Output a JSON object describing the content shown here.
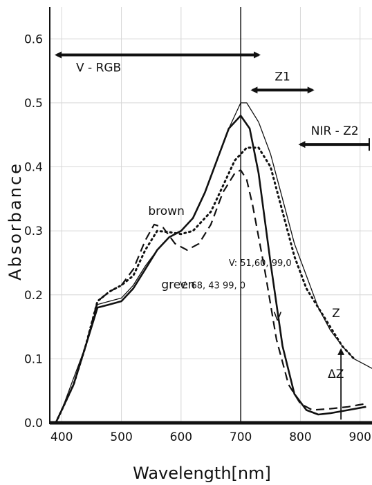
{
  "chart_data": {
    "type": "line",
    "xlabel": "Wavelength[nm]",
    "ylabel": "Absorbance",
    "xlim": [
      380,
      920
    ],
    "ylim": [
      0.0,
      0.65
    ],
    "x_ticks": [
      "400",
      "500",
      "600",
      "700",
      "800",
      "900"
    ],
    "y_ticks": [
      "0.0",
      "0.1",
      "0.2",
      "0.3",
      "0.4",
      "0.5",
      "0.6"
    ],
    "grid": true,
    "vertical_line_x": 700,
    "series": [
      {
        "name": "brown",
        "style": "dashed",
        "points": [
          [
            390,
            0.0
          ],
          [
            400,
            0.02
          ],
          [
            420,
            0.06
          ],
          [
            440,
            0.12
          ],
          [
            460,
            0.19
          ],
          [
            480,
            0.205
          ],
          [
            500,
            0.215
          ],
          [
            520,
            0.24
          ],
          [
            540,
            0.285
          ],
          [
            555,
            0.31
          ],
          [
            570,
            0.305
          ],
          [
            590,
            0.28
          ],
          [
            610,
            0.27
          ],
          [
            630,
            0.28
          ],
          [
            650,
            0.31
          ],
          [
            670,
            0.36
          ],
          [
            690,
            0.39
          ],
          [
            700,
            0.395
          ],
          [
            710,
            0.38
          ],
          [
            720,
            0.34
          ],
          [
            740,
            0.24
          ],
          [
            760,
            0.13
          ],
          [
            780,
            0.06
          ],
          [
            800,
            0.03
          ],
          [
            820,
            0.02
          ],
          [
            850,
            0.022
          ],
          [
            880,
            0.025
          ],
          [
            910,
            0.03
          ]
        ]
      },
      {
        "name": "green",
        "style": "dotted",
        "points": [
          [
            390,
            0.0
          ],
          [
            400,
            0.02
          ],
          [
            420,
            0.06
          ],
          [
            440,
            0.12
          ],
          [
            460,
            0.19
          ],
          [
            480,
            0.205
          ],
          [
            500,
            0.215
          ],
          [
            520,
            0.23
          ],
          [
            540,
            0.27
          ],
          [
            560,
            0.3
          ],
          [
            580,
            0.298
          ],
          [
            600,
            0.295
          ],
          [
            620,
            0.3
          ],
          [
            650,
            0.33
          ],
          [
            670,
            0.37
          ],
          [
            690,
            0.41
          ],
          [
            710,
            0.43
          ],
          [
            730,
            0.43
          ],
          [
            750,
            0.4
          ],
          [
            770,
            0.33
          ],
          [
            790,
            0.26
          ],
          [
            810,
            0.21
          ],
          [
            830,
            0.18
          ],
          [
            850,
            0.15
          ],
          [
            870,
            0.12
          ],
          [
            890,
            0.1
          ]
        ]
      },
      {
        "name": "V",
        "style": "solid-thick",
        "points": [
          [
            390,
            0.0
          ],
          [
            400,
            0.02
          ],
          [
            420,
            0.06
          ],
          [
            440,
            0.12
          ],
          [
            460,
            0.18
          ],
          [
            480,
            0.185
          ],
          [
            500,
            0.19
          ],
          [
            520,
            0.21
          ],
          [
            540,
            0.24
          ],
          [
            560,
            0.27
          ],
          [
            580,
            0.29
          ],
          [
            600,
            0.3
          ],
          [
            620,
            0.32
          ],
          [
            640,
            0.36
          ],
          [
            660,
            0.41
          ],
          [
            680,
            0.46
          ],
          [
            700,
            0.48
          ],
          [
            715,
            0.46
          ],
          [
            730,
            0.39
          ],
          [
            750,
            0.25
          ],
          [
            770,
            0.12
          ],
          [
            790,
            0.045
          ],
          [
            810,
            0.02
          ],
          [
            830,
            0.013
          ],
          [
            850,
            0.015
          ],
          [
            880,
            0.02
          ],
          [
            910,
            0.025
          ]
        ]
      },
      {
        "name": "Z",
        "style": "solid-thin",
        "points": [
          [
            390,
            0.0
          ],
          [
            400,
            0.02
          ],
          [
            420,
            0.07
          ],
          [
            440,
            0.12
          ],
          [
            460,
            0.185
          ],
          [
            480,
            0.19
          ],
          [
            500,
            0.195
          ],
          [
            520,
            0.215
          ],
          [
            540,
            0.245
          ],
          [
            560,
            0.27
          ],
          [
            580,
            0.29
          ],
          [
            600,
            0.3
          ],
          [
            620,
            0.32
          ],
          [
            640,
            0.36
          ],
          [
            660,
            0.41
          ],
          [
            680,
            0.46
          ],
          [
            700,
            0.5
          ],
          [
            710,
            0.5
          ],
          [
            730,
            0.47
          ],
          [
            750,
            0.42
          ],
          [
            770,
            0.35
          ],
          [
            790,
            0.28
          ],
          [
            810,
            0.23
          ],
          [
            830,
            0.18
          ],
          [
            850,
            0.145
          ],
          [
            870,
            0.12
          ],
          [
            890,
            0.1
          ],
          [
            910,
            0.09
          ],
          [
            920,
            0.085
          ]
        ]
      }
    ],
    "ranges": [
      {
        "label": "V - RGB",
        "from": 380,
        "to": 730,
        "y": 0.575,
        "arrow": "both"
      },
      {
        "label": "Z1",
        "from": 720,
        "to": 820,
        "y": 0.52,
        "arrow": "both"
      },
      {
        "label": "NIR - Z2",
        "from": 800,
        "to": 920,
        "y": 0.435,
        "arrow": "left"
      }
    ],
    "annotations": [
      {
        "text": "brown",
        "x": 545,
        "y": 0.325,
        "size": "normal"
      },
      {
        "text": "green",
        "x": 567,
        "y": 0.21,
        "size": "normal"
      },
      {
        "text": "V: 68, 43 99, 0",
        "x": 598,
        "y": 0.21,
        "size": "small"
      },
      {
        "text": "V: 51,60, 99,0",
        "x": 680,
        "y": 0.245,
        "size": "small"
      },
      {
        "text": "V",
        "x": 755,
        "y": 0.16,
        "size": "normal"
      },
      {
        "text": "Z",
        "x": 853,
        "y": 0.165,
        "size": "normal"
      },
      {
        "text": "ΔZ",
        "x": 846,
        "y": 0.07,
        "size": "normal"
      }
    ],
    "delta_marker": {
      "x": 868,
      "y_from": 0.12,
      "y_to": 0.005
    }
  }
}
